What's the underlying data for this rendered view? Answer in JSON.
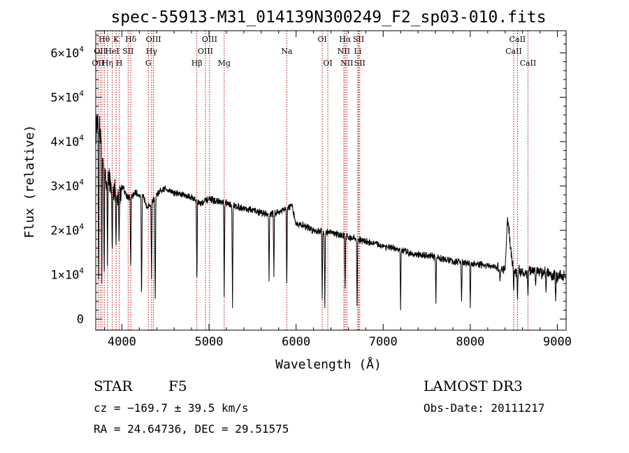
{
  "chart_data": {
    "type": "line",
    "title": "spec-55913-M31_014139N300249_F2_sp03-010.fits",
    "xlabel": "Wavelength (Å)",
    "ylabel": "Flux (relative)",
    "xlim": [
      3700,
      9100
    ],
    "ylim": [
      -2500,
      65000
    ],
    "x_ticks": [
      {
        "value": 4000,
        "label": "4000"
      },
      {
        "value": 5000,
        "label": "5000"
      },
      {
        "value": 6000,
        "label": "6000"
      },
      {
        "value": 7000,
        "label": "7000"
      },
      {
        "value": 8000,
        "label": "8000"
      },
      {
        "value": 9000,
        "label": "9000"
      }
    ],
    "y_ticks": [
      {
        "value": 0,
        "mantissa": "0",
        "exp": ""
      },
      {
        "value": 10000,
        "mantissa": "1×10",
        "exp": "4"
      },
      {
        "value": 20000,
        "mantissa": "2×10",
        "exp": "4"
      },
      {
        "value": 30000,
        "mantissa": "3×10",
        "exp": "4"
      },
      {
        "value": 40000,
        "mantissa": "4×10",
        "exp": "4"
      },
      {
        "value": 50000,
        "mantissa": "5×10",
        "exp": "4"
      },
      {
        "value": 60000,
        "mantissa": "6×10",
        "exp": "4"
      }
    ],
    "grid": false,
    "line_color": "#000000",
    "marker_color": "#c00000",
    "spectrum_anchors": [
      [
        3700,
        42000
      ],
      [
        3730,
        46000
      ],
      [
        3760,
        40000
      ],
      [
        3790,
        36000
      ],
      [
        3820,
        31000
      ],
      [
        3850,
        33000
      ],
      [
        3880,
        28000
      ],
      [
        3910,
        30000
      ],
      [
        3935,
        26000
      ],
      [
        3970,
        28000
      ],
      [
        4010,
        30000
      ],
      [
        4050,
        28000
      ],
      [
        4100,
        27000
      ],
      [
        4150,
        28500
      ],
      [
        4250,
        27500
      ],
      [
        4300,
        25000
      ],
      [
        4400,
        28000
      ],
      [
        4500,
        29500
      ],
      [
        4600,
        28500
      ],
      [
        4800,
        27500
      ],
      [
        4900,
        26000
      ],
      [
        5000,
        27000
      ],
      [
        5200,
        26000
      ],
      [
        5400,
        25000
      ],
      [
        5600,
        24000
      ],
      [
        5700,
        23500
      ],
      [
        5850,
        24500
      ],
      [
        5950,
        25500
      ],
      [
        6000,
        21500
      ],
      [
        6100,
        21000
      ],
      [
        6200,
        20000
      ],
      [
        6400,
        19500
      ],
      [
        6600,
        18500
      ],
      [
        6800,
        17500
      ],
      [
        7000,
        16500
      ],
      [
        7200,
        15500
      ],
      [
        7400,
        14500
      ],
      [
        7600,
        14000
      ],
      [
        7800,
        13000
      ],
      [
        8000,
        12500
      ],
      [
        8200,
        12000
      ],
      [
        8400,
        11000
      ],
      [
        8430,
        23500
      ],
      [
        8460,
        16500
      ],
      [
        8500,
        11000
      ],
      [
        8600,
        10500
      ],
      [
        8800,
        11000
      ],
      [
        9000,
        9500
      ],
      [
        9100,
        10000
      ]
    ],
    "spectrum_dips": [
      [
        3733,
        6500
      ],
      [
        3770,
        8000
      ],
      [
        3797,
        9000
      ],
      [
        3835,
        12000
      ],
      [
        3889,
        14000
      ],
      [
        3933,
        16000
      ],
      [
        3968,
        17000
      ],
      [
        4101,
        10000
      ],
      [
        4226,
        3000
      ],
      [
        4340,
        9000
      ],
      [
        4383,
        3000
      ],
      [
        4861,
        7000
      ],
      [
        5175,
        5000
      ],
      [
        5270,
        2500
      ],
      [
        5690,
        8500
      ],
      [
        5745,
        9500
      ],
      [
        5893,
        7000
      ],
      [
        6300,
        4500
      ],
      [
        6330,
        2500
      ],
      [
        6563,
        6000
      ],
      [
        6700,
        3000
      ],
      [
        7200,
        2000
      ],
      [
        7605,
        3500
      ],
      [
        7900,
        4000
      ],
      [
        8000,
        2500
      ],
      [
        8340,
        8500
      ],
      [
        8498,
        6000
      ],
      [
        8542,
        4000
      ],
      [
        8662,
        5000
      ],
      [
        8750,
        7500
      ],
      [
        8820,
        9000
      ],
      [
        8870,
        6000
      ],
      [
        8980,
        4000
      ]
    ],
    "emission_lines": [
      {
        "x": 3727,
        "labels": [
          "OII"
        ],
        "row": 2,
        "anchor": "middle",
        "dx": 0
      },
      {
        "x": 3750,
        "labels": [
          "OII"
        ],
        "row": 1,
        "anchor": "middle",
        "dx": 0
      },
      {
        "x": 3771,
        "labels": [],
        "row": 0,
        "anchor": "middle",
        "dx": 0
      },
      {
        "x": 3798,
        "labels": [
          "Hθ"
        ],
        "row": 0,
        "anchor": "middle",
        "dx": 0
      },
      {
        "x": 3835,
        "labels": [
          "Hη"
        ],
        "row": 2,
        "anchor": "middle",
        "dx": 0
      },
      {
        "x": 3889,
        "labels": [
          "HeI"
        ],
        "row": 1,
        "anchor": "middle",
        "dx": 0
      },
      {
        "x": 3934,
        "labels": [
          "K"
        ],
        "row": 0,
        "anchor": "middle",
        "dx": 0
      },
      {
        "x": 3969,
        "labels": [
          "H"
        ],
        "row": 2,
        "anchor": "middle",
        "dx": 0
      },
      {
        "x": 4072,
        "labels": [
          "SII"
        ],
        "row": 1,
        "anchor": "middle",
        "dx": 0
      },
      {
        "x": 4102,
        "labels": [
          "Hδ"
        ],
        "row": 0,
        "anchor": "middle",
        "dx": 0
      },
      {
        "x": 4304,
        "labels": [
          "G"
        ],
        "row": 2,
        "anchor": "middle",
        "dx": 0
      },
      {
        "x": 4341,
        "labels": [
          "Hγ"
        ],
        "row": 1,
        "anchor": "middle",
        "dx": 0
      },
      {
        "x": 4363,
        "labels": [
          "OIII"
        ],
        "row": 0,
        "anchor": "middle",
        "dx": 0
      },
      {
        "x": 4861,
        "labels": [
          "Hβ"
        ],
        "row": 2,
        "anchor": "middle",
        "dx": 0
      },
      {
        "x": 4959,
        "labels": [
          "OIII"
        ],
        "row": 1,
        "anchor": "middle",
        "dx": 0
      },
      {
        "x": 5007,
        "labels": [
          "OIII"
        ],
        "row": 0,
        "anchor": "middle",
        "dx": 0
      },
      {
        "x": 5175,
        "labels": [
          "Mg"
        ],
        "row": 2,
        "anchor": "middle",
        "dx": 0
      },
      {
        "x": 5893,
        "labels": [
          "Na"
        ],
        "row": 1,
        "anchor": "middle",
        "dx": 0
      },
      {
        "x": 6300,
        "labels": [
          "OI"
        ],
        "row": 0,
        "anchor": "middle",
        "dx": 0
      },
      {
        "x": 6364,
        "labels": [
          "OI"
        ],
        "row": 2,
        "anchor": "middle",
        "dx": 0
      },
      {
        "x": 6548,
        "labels": [
          "NII"
        ],
        "row": 1,
        "anchor": "middle",
        "dx": 0
      },
      {
        "x": 6563,
        "labels": [
          "Hα"
        ],
        "row": 0,
        "anchor": "middle",
        "dx": 0
      },
      {
        "x": 6583,
        "labels": [
          "NII"
        ],
        "row": 2,
        "anchor": "middle",
        "dx": 0
      },
      {
        "x": 6708,
        "labels": [
          "Li"
        ],
        "row": 1,
        "anchor": "middle",
        "dx": 0
      },
      {
        "x": 6717,
        "labels": [
          "SII"
        ],
        "row": 0,
        "anchor": "middle",
        "dx": 0
      },
      {
        "x": 6731,
        "labels": [
          "SII"
        ],
        "row": 2,
        "anchor": "middle",
        "dx": 0
      },
      {
        "x": 8498,
        "labels": [
          "CaII"
        ],
        "row": 1,
        "anchor": "middle",
        "dx": 0
      },
      {
        "x": 8542,
        "labels": [
          "CaII"
        ],
        "row": 0,
        "anchor": "middle",
        "dx": 0
      },
      {
        "x": 8662,
        "labels": [
          "CaII"
        ],
        "row": 2,
        "anchor": "middle",
        "dx": 0
      }
    ]
  },
  "info": {
    "class": "STAR",
    "subclass": "F5",
    "survey": "LAMOST DR3",
    "cz": "cz = −169.7 ± 39.5 km/s",
    "obs_date": "Obs-Date: 20111217",
    "coords": "RA =  24.64736, DEC =  29.51575"
  }
}
